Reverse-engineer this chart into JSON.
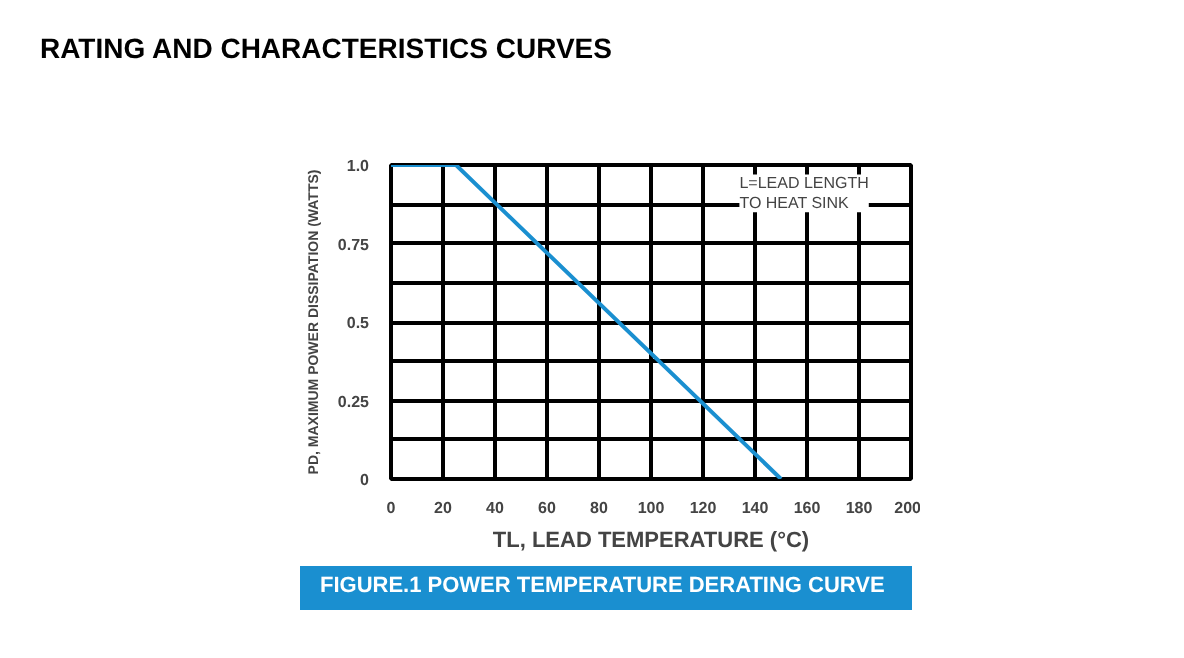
{
  "chart_data": {
    "type": "line",
    "title": "RATING AND CHARACTERISTICS CURVES",
    "subtitle": "FIGURE.1 POWER TEMPERATURE DERATING CURVE",
    "xlabel": "TL, LEAD TEMPERATURE (°C)",
    "ylabel": "PD, MAXIMUM POWER DISSIPATION (WATTS)",
    "annotations": [
      "L=LEAD LENGTH\nTO HEAT SINK"
    ],
    "x": [
      0,
      25,
      150
    ],
    "series": [
      {
        "color": "#1a8fd0",
        "values": [
          1.0,
          1.0,
          0
        ]
      }
    ],
    "xlim": [
      0,
      200
    ],
    "xticks": [
      0,
      20,
      40,
      60,
      80,
      100,
      120,
      140,
      160,
      180,
      200
    ],
    "ylim": [
      0,
      1.0
    ],
    "yticks": [
      0,
      {
        "value": 0.125,
        "label": null
      },
      0.25,
      {
        "value": 0.375,
        "label": null
      },
      0.5,
      {
        "value": 0.625,
        "label": null
      },
      0.75,
      {
        "value": 0.875,
        "label": null
      },
      {
        "value": 1.0,
        "label": "1.0"
      }
    ],
    "grid": true,
    "marker": "none",
    "line_style": "solid"
  }
}
